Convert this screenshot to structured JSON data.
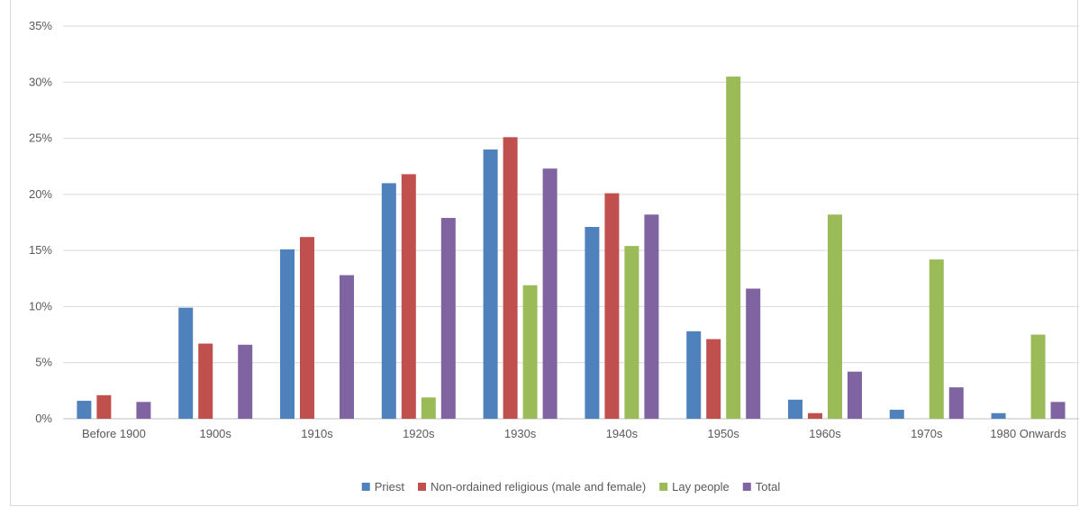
{
  "chart_data": {
    "type": "bar",
    "title": "",
    "xlabel": "",
    "ylabel": "",
    "ylim": [
      0,
      35
    ],
    "y_ticks": [
      "0%",
      "5%",
      "10%",
      "15%",
      "20%",
      "25%",
      "30%",
      "35%"
    ],
    "y_tick_values": [
      0,
      5,
      10,
      15,
      20,
      25,
      30,
      35
    ],
    "grid": true,
    "legend_position": "bottom",
    "categories": [
      "Before 1900",
      "1900s",
      "1910s",
      "1920s",
      "1930s",
      "1940s",
      "1950s",
      "1960s",
      "1970s",
      "1980 Onwards"
    ],
    "series": [
      {
        "name": "Priest",
        "color": "#4f81bd",
        "values": [
          1.6,
          9.9,
          15.1,
          21.0,
          24.0,
          17.1,
          7.8,
          1.7,
          0.8,
          0.5
        ]
      },
      {
        "name": "Non-ordained religious (male and female)",
        "color": "#c0504d",
        "values": [
          2.1,
          6.7,
          16.2,
          21.8,
          25.1,
          20.1,
          7.1,
          0.5,
          0,
          0
        ]
      },
      {
        "name": "Lay people",
        "color": "#9bbb59",
        "values": [
          0,
          0,
          0,
          1.9,
          11.9,
          15.4,
          30.5,
          18.2,
          14.2,
          7.5
        ]
      },
      {
        "name": "Total",
        "color": "#8064a2",
        "values": [
          1.5,
          6.6,
          12.8,
          17.9,
          22.3,
          18.2,
          11.6,
          4.2,
          2.8,
          1.5
        ]
      }
    ]
  }
}
